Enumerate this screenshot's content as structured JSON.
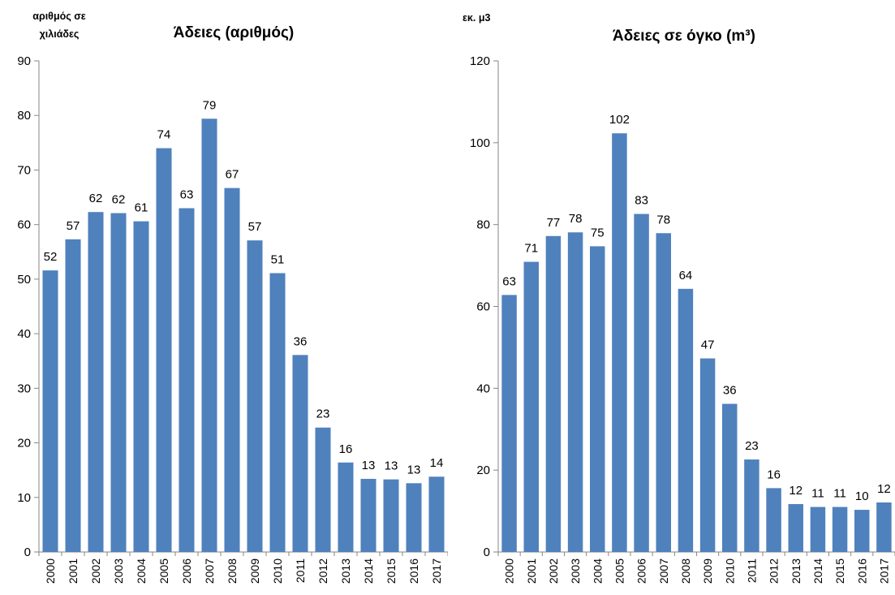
{
  "chart_data": [
    {
      "type": "bar",
      "title": "Άδειες (αριθμός)",
      "ylabel_line1": "αριθμός σε",
      "ylabel_line2": "χιλιάδες",
      "xlabel": "",
      "ylim": [
        0,
        90
      ],
      "yticks": [
        0,
        10,
        20,
        30,
        40,
        50,
        60,
        70,
        80,
        90
      ],
      "bar_color": "#4f81bd",
      "categories": [
        "2000",
        "2001",
        "2002",
        "2003",
        "2004",
        "2005",
        "2006",
        "2007",
        "2008",
        "2009",
        "2010",
        "2011",
        "2012",
        "2013",
        "2014",
        "2015",
        "2016",
        "2017"
      ],
      "values": [
        51.6,
        57.3,
        62.3,
        62.1,
        60.6,
        74.0,
        63.0,
        79.4,
        66.7,
        57.1,
        51.1,
        36.1,
        22.8,
        16.4,
        13.4,
        13.3,
        12.6,
        13.8
      ],
      "labels": [
        "52",
        "57",
        "62",
        "62",
        "61",
        "74",
        "63",
        "79",
        "67",
        "57",
        "51",
        "36",
        "23",
        "16",
        "13",
        "13",
        "13",
        "14"
      ]
    },
    {
      "type": "bar",
      "title": "Άδειες σε όγκο (m³)",
      "ylabel_line1": "εκ. μ3",
      "xlabel": "",
      "ylim": [
        0,
        120
      ],
      "yticks": [
        0,
        20,
        40,
        60,
        80,
        100,
        120
      ],
      "bar_color": "#4f81bd",
      "categories": [
        "2000",
        "2001",
        "2002",
        "2003",
        "2004",
        "2005",
        "2006",
        "2007",
        "2008",
        "2009",
        "2010",
        "2011",
        "2012",
        "2013",
        "2014",
        "2015",
        "2016",
        "2017"
      ],
      "values": [
        62.8,
        70.9,
        77.2,
        78.1,
        74.7,
        102.3,
        82.6,
        77.9,
        64.3,
        47.3,
        36.2,
        22.6,
        15.6,
        11.7,
        11.0,
        11.0,
        10.3,
        12.1
      ],
      "labels": [
        "63",
        "71",
        "77",
        "78",
        "75",
        "102",
        "83",
        "78",
        "64",
        "47",
        "36",
        "23",
        "16",
        "12",
        "11",
        "11",
        "10",
        "12"
      ]
    }
  ]
}
